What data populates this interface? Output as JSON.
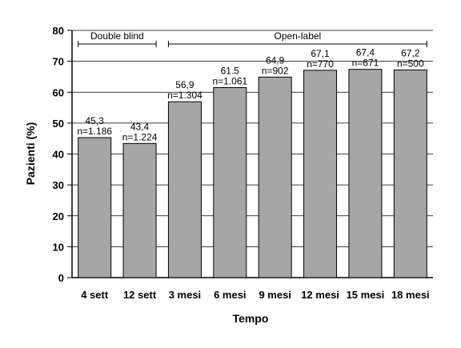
{
  "chart_data": {
    "type": "bar",
    "xlabel": "Tempo",
    "ylabel": "Pazienti (%)",
    "ylim": [
      0,
      80
    ],
    "yticks": [
      0,
      10,
      20,
      30,
      40,
      50,
      60,
      70,
      80
    ],
    "grid": true,
    "bar_color": "#a6a6a6",
    "categories": [
      "4 sett",
      "12 sett",
      "3 mesi",
      "6 mesi",
      "9 mesi",
      "12 mesi",
      "15 mesi",
      "18 mesi"
    ],
    "values": [
      45.3,
      43.4,
      56.9,
      61.5,
      64.9,
      67.1,
      67.4,
      67.2
    ],
    "value_labels": [
      "45,3",
      "43,4",
      "56,9",
      "61.5",
      "64,9",
      "67,1",
      "67,4",
      "67,2"
    ],
    "n_labels": [
      "n=1.186",
      "n=1.224",
      "n=1.304",
      "n=1.061",
      "n=902",
      "n=770",
      "n=671",
      "n=500"
    ],
    "phases": [
      {
        "label": "Double blind",
        "start_index": 0,
        "end_index": 1
      },
      {
        "label": "Open-label",
        "start_index": 2,
        "end_index": 7
      }
    ]
  }
}
